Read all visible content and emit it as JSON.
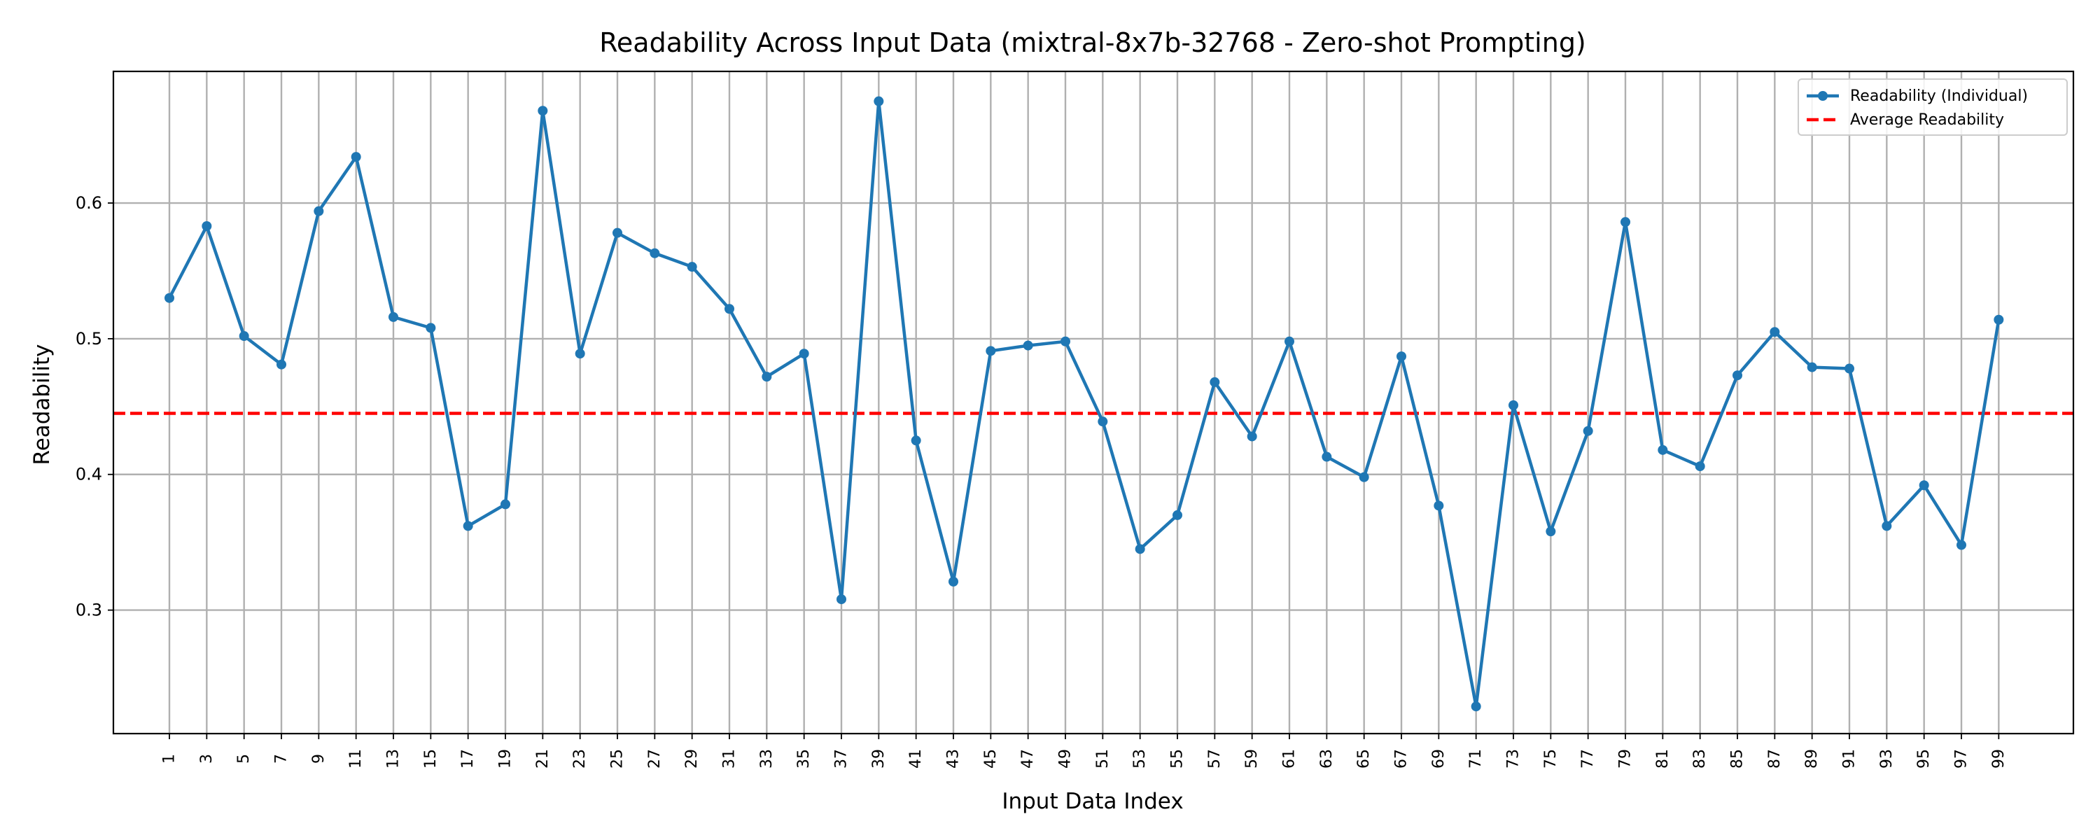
{
  "chart_data": {
    "type": "line",
    "title": "Readability Across Input Data (mixtral-8x7b-32768 - Zero-shot Prompting)",
    "xlabel": "Input Data Index",
    "ylabel": "Readability",
    "xlim": [
      -1.5,
      51.0
    ],
    "ylim": [
      0.209,
      0.697
    ],
    "xticks": [
      "1",
      "3",
      "5",
      "7",
      "9",
      "11",
      "13",
      "15",
      "17",
      "19",
      "21",
      "23",
      "25",
      "27",
      "29",
      "31",
      "33",
      "35",
      "37",
      "39",
      "41",
      "43",
      "45",
      "47",
      "49",
      "51",
      "53",
      "55",
      "57",
      "59",
      "61",
      "63",
      "65",
      "67",
      "69",
      "71",
      "73",
      "75",
      "77",
      "79",
      "81",
      "83",
      "85",
      "87",
      "89",
      "91",
      "93",
      "95",
      "97",
      "99"
    ],
    "yticks": [
      0.3,
      0.4,
      0.5,
      0.6
    ],
    "ytick_labels": [
      "0.3",
      "0.4",
      "0.5",
      "0.6"
    ],
    "grid": true,
    "legend_position": "top-right",
    "series": [
      {
        "name": "Readability (Individual)",
        "color": "#1f77b4",
        "marker": "circle",
        "values": [
          0.53,
          0.583,
          0.502,
          0.481,
          0.594,
          0.634,
          0.516,
          0.508,
          0.362,
          0.378,
          0.668,
          0.489,
          0.578,
          0.563,
          0.553,
          0.522,
          0.472,
          0.489,
          0.308,
          0.675,
          0.425,
          0.321,
          0.491,
          0.495,
          0.498,
          0.439,
          0.345,
          0.37,
          0.468,
          0.428,
          0.498,
          0.413,
          0.398,
          0.487,
          0.377,
          0.229,
          0.451,
          0.358,
          0.432,
          0.586,
          0.418,
          0.406,
          0.473,
          0.505,
          0.479,
          0.478,
          0.362,
          0.392,
          0.348,
          0.514
        ]
      },
      {
        "name": "Average Readability",
        "color": "#ff0000",
        "style": "dashed",
        "value": 0.445
      }
    ]
  }
}
